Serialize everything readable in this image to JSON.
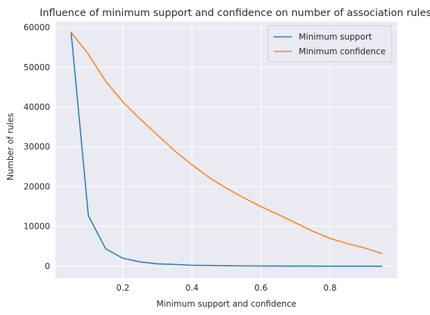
{
  "chart_data": {
    "type": "line",
    "title": "Influence of minimum support and confidence on number of association rules",
    "xlabel": "Minimum support and confidence",
    "ylabel": "Number of rules",
    "xlim": [
      0.005,
      0.995
    ],
    "ylim": [
      -3000,
      61500
    ],
    "x_ticks": [
      {
        "value": 0.2,
        "label": "0.2"
      },
      {
        "value": 0.4,
        "label": "0.4"
      },
      {
        "value": 0.6,
        "label": "0.6"
      },
      {
        "value": 0.8,
        "label": "0.8"
      }
    ],
    "y_ticks": [
      {
        "value": 0,
        "label": "0"
      },
      {
        "value": 10000,
        "label": "10000"
      },
      {
        "value": 20000,
        "label": "20000"
      },
      {
        "value": 30000,
        "label": "30000"
      },
      {
        "value": 40000,
        "label": "40000"
      },
      {
        "value": 50000,
        "label": "50000"
      },
      {
        "value": 60000,
        "label": "60000"
      }
    ],
    "grid": true,
    "legend_position": "top-right",
    "x": [
      0.05,
      0.1,
      0.15,
      0.2,
      0.25,
      0.3,
      0.35,
      0.4,
      0.45,
      0.5,
      0.55,
      0.6,
      0.65,
      0.7,
      0.75,
      0.8,
      0.85,
      0.9,
      0.95
    ],
    "series": [
      {
        "name": "Minimum support",
        "color": "#1f77b4",
        "values": [
          58800,
          12700,
          4400,
          2000,
          1100,
          600,
          450,
          250,
          200,
          120,
          80,
          60,
          40,
          30,
          20,
          15,
          10,
          8,
          5
        ]
      },
      {
        "name": "Minimum confidence",
        "color": "#ff7f0e",
        "values": [
          58800,
          53300,
          46500,
          41300,
          37000,
          33000,
          29000,
          25500,
          22300,
          19600,
          17200,
          15000,
          13000,
          10900,
          8800,
          7000,
          5700,
          4600,
          3200
        ]
      }
    ]
  }
}
